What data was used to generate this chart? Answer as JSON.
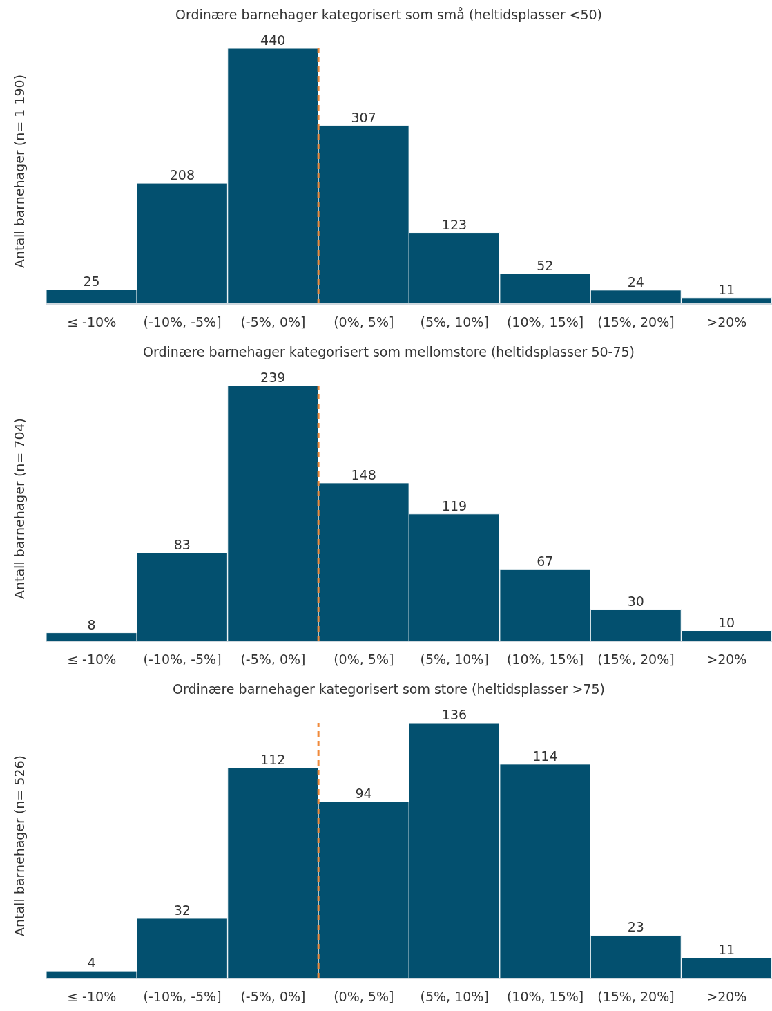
{
  "chart_data": [
    {
      "type": "bar",
      "title": "Ordinære barnehager kategorisert som små (heltidsplasser <50)",
      "ylabel": "Antall barnehager (n= 1 190)",
      "categories": [
        "≤ -10%",
        "(-10%, -5%]",
        "(-5%, 0%]",
        "(0%, 5%]",
        "(5%, 10%]",
        "(10%, 15%]",
        "(15%, 20%]",
        ">20%"
      ],
      "values": [
        25,
        208,
        440,
        307,
        123,
        52,
        24,
        11
      ],
      "color": "#03506f",
      "data_labels": true,
      "tick_labels": "x",
      "grid": false,
      "legend": false,
      "ref_lines": [
        {
          "axis": "x",
          "value": "(0%, 5%]",
          "color": "#f08a3c",
          "line_style": "dashed"
        }
      ]
    },
    {
      "type": "bar",
      "title": "Ordinære barnehager kategorisert som mellomstore (heltidsplasser 50-75)",
      "ylabel": "Antall barnehager (n= 704)",
      "categories": [
        "≤ -10%",
        "(-10%, -5%]",
        "(-5%, 0%]",
        "(0%, 5%]",
        "(5%, 10%]",
        "(10%, 15%]",
        "(15%, 20%]",
        ">20%"
      ],
      "values": [
        8,
        83,
        239,
        148,
        119,
        67,
        30,
        10
      ],
      "color": "#03506f",
      "data_labels": true,
      "tick_labels": "x",
      "grid": false,
      "legend": false,
      "ref_lines": [
        {
          "axis": "x",
          "value": "(0%, 5%]",
          "color": "#f08a3c",
          "line_style": "dashed"
        }
      ]
    },
    {
      "type": "bar",
      "title": "Ordinære barnehager kategorisert som store (heltidsplasser >75)",
      "ylabel": "Antall barnehager (n= 526)",
      "categories": [
        "≤ -10%",
        "(-10%, -5%]",
        "(-5%, 0%]",
        "(0%, 5%]",
        "(5%, 10%]",
        "(10%, 15%]",
        "(15%, 20%]",
        ">20%"
      ],
      "values": [
        4,
        32,
        112,
        94,
        136,
        114,
        23,
        11
      ],
      "color": "#03506f",
      "data_labels": true,
      "tick_labels": "x",
      "grid": false,
      "legend": false,
      "ref_lines": [
        {
          "axis": "x",
          "value": "(0%, 5%]",
          "color": "#f08a3c",
          "line_style": "dashed"
        }
      ]
    }
  ]
}
